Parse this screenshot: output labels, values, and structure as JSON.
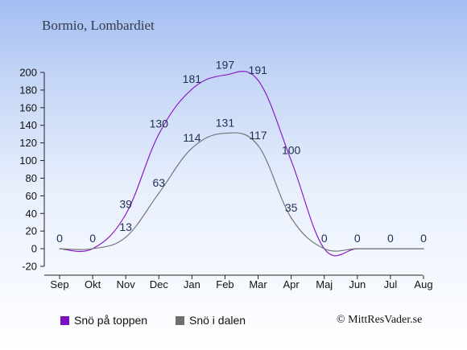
{
  "page": {
    "title": "Bormio, Lombardiet",
    "credit": "© MittResVader.se"
  },
  "chart_data": {
    "type": "line",
    "categories": [
      "Sep",
      "Okt",
      "Nov",
      "Dec",
      "Jan",
      "Feb",
      "Mar",
      "Apr",
      "Maj",
      "Jun",
      "Jul",
      "Aug"
    ],
    "y_ticks": [
      -20,
      0,
      20,
      40,
      60,
      80,
      100,
      120,
      140,
      160,
      180,
      200
    ],
    "ylim": [
      -20,
      200
    ],
    "grid": false,
    "legend_position": "bottom-left",
    "series": [
      {
        "name": "Snö på toppen",
        "color": "#8a1ec8",
        "legend_color": "#7c10c0",
        "values": [
          0,
          0,
          39,
          130,
          181,
          197,
          191,
          100,
          0,
          0,
          0,
          0
        ],
        "labels": [
          "0",
          "0",
          "39",
          "130",
          "181",
          "197",
          "191",
          "100",
          "0",
          "0",
          "0",
          "0"
        ],
        "label_positions": [
          "above",
          "above",
          "above",
          "above",
          "above",
          "above",
          "right",
          "above",
          "above",
          "above",
          "above",
          "above"
        ]
      },
      {
        "name": "Snö i dalen",
        "color": "#777777",
        "legend_color": "#6e6e6e",
        "values": [
          0,
          0,
          13,
          63,
          114,
          131,
          117,
          35,
          0,
          0,
          0,
          0
        ],
        "labels": [
          "",
          "",
          "13",
          "63",
          "114",
          "131",
          "117",
          "35",
          "",
          "",
          "",
          ""
        ],
        "label_positions": [
          "above",
          "above",
          "above",
          "above",
          "above",
          "above",
          "above",
          "above",
          "above",
          "above",
          "above",
          "above"
        ]
      }
    ],
    "label_color": "#1e2e52",
    "axis_color": "#222222"
  }
}
